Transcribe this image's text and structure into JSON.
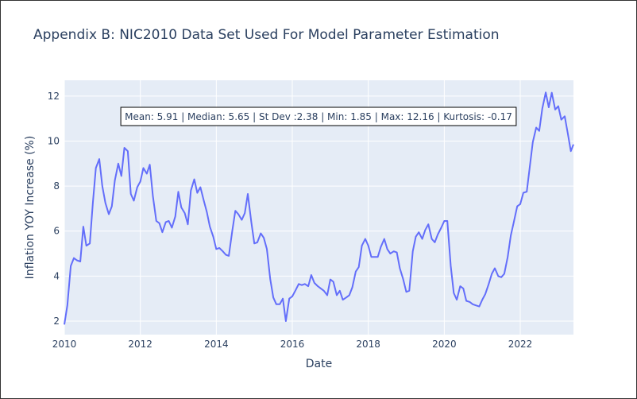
{
  "chart_data": {
    "type": "line",
    "title": "Appendix B: NIC2010 Data Set Used For Model Parameter Estimation",
    "xlabel": "Date",
    "ylabel": "Inflation YOY Increase (%)",
    "xlim": [
      2010.0,
      2023.4
    ],
    "ylim": [
      1.4,
      12.7
    ],
    "x_ticks": [
      2010,
      2012,
      2014,
      2016,
      2018,
      2020,
      2022
    ],
    "y_ticks": [
      2,
      4,
      6,
      8,
      10,
      12
    ],
    "grid": true,
    "legend": "none",
    "annotation": "Mean: 5.91 | Median: 5.65 | St Dev :2.38 | Min: 1.85 | Max: 12.16 | Kurtosis: -0.17",
    "colors": {
      "line": "#636efa",
      "plot_bg": "#e5ecf6",
      "grid": "#ffffff",
      "text": "#2a3f5f"
    },
    "series": [
      {
        "x": [
          2010.0,
          2010.08,
          2010.17,
          2010.25,
          2010.33,
          2010.42,
          2010.5,
          2010.58,
          2010.67,
          2010.75,
          2010.83,
          2010.92,
          2011.0,
          2011.08,
          2011.17,
          2011.25,
          2011.33,
          2011.42,
          2011.5,
          2011.58,
          2011.67,
          2011.75,
          2011.83,
          2011.92,
          2012.0,
          2012.08,
          2012.17,
          2012.25,
          2012.33,
          2012.42,
          2012.5,
          2012.58,
          2012.67,
          2012.75,
          2012.83,
          2012.92,
          2013.0,
          2013.08,
          2013.17,
          2013.25,
          2013.33,
          2013.42,
          2013.5,
          2013.58,
          2013.67,
          2013.75,
          2013.83,
          2013.92,
          2014.0,
          2014.08,
          2014.17,
          2014.25,
          2014.33,
          2014.42,
          2014.5,
          2014.58,
          2014.67,
          2014.75,
          2014.83,
          2014.92,
          2015.0,
          2015.08,
          2015.17,
          2015.25,
          2015.33,
          2015.42,
          2015.5,
          2015.58,
          2015.67,
          2015.75,
          2015.83,
          2015.92,
          2016.0,
          2016.08,
          2016.17,
          2016.25,
          2016.33,
          2016.42,
          2016.5,
          2016.58,
          2016.67,
          2016.75,
          2016.83,
          2016.92,
          2017.0,
          2017.08,
          2017.17,
          2017.25,
          2017.33,
          2017.42,
          2017.5,
          2017.58,
          2017.67,
          2017.75,
          2017.83,
          2017.92,
          2018.0,
          2018.08,
          2018.17,
          2018.25,
          2018.33,
          2018.42,
          2018.5,
          2018.58,
          2018.67,
          2018.75,
          2018.83,
          2018.92,
          2019.0,
          2019.08,
          2019.17,
          2019.25,
          2019.33,
          2019.42,
          2019.5,
          2019.58,
          2019.67,
          2019.75,
          2019.83,
          2019.92,
          2020.0,
          2020.08,
          2020.17,
          2020.25,
          2020.33,
          2020.42,
          2020.5,
          2020.58,
          2020.67,
          2020.75,
          2020.83,
          2020.92,
          2021.0,
          2021.08,
          2021.17,
          2021.25,
          2021.33,
          2021.42,
          2021.5,
          2021.58,
          2021.67,
          2021.75,
          2021.83,
          2021.92,
          2022.0,
          2022.08,
          2022.17,
          2022.25,
          2022.33,
          2022.42,
          2022.5,
          2022.58,
          2022.67,
          2022.75,
          2022.83,
          2022.92,
          2023.0,
          2023.08,
          2023.17,
          2023.25,
          2023.33,
          2023.4
        ],
        "y": [
          1.85,
          2.7,
          4.45,
          4.8,
          4.7,
          4.65,
          6.2,
          5.35,
          5.45,
          7.25,
          8.8,
          9.2,
          8.0,
          7.25,
          6.75,
          7.1,
          8.25,
          9.0,
          8.45,
          9.7,
          9.55,
          7.65,
          7.35,
          7.95,
          8.2,
          8.8,
          8.55,
          8.95,
          7.55,
          6.45,
          6.35,
          5.95,
          6.4,
          6.45,
          6.15,
          6.65,
          7.75,
          7.05,
          6.8,
          6.3,
          7.8,
          8.3,
          7.7,
          7.95,
          7.35,
          6.85,
          6.2,
          5.75,
          5.2,
          5.25,
          5.1,
          4.95,
          4.9,
          6.0,
          6.9,
          6.75,
          6.5,
          6.8,
          7.65,
          6.4,
          5.45,
          5.5,
          5.9,
          5.7,
          5.2,
          3.85,
          3.05,
          2.75,
          2.75,
          3.0,
          2.0,
          3.0,
          3.1,
          3.35,
          3.65,
          3.6,
          3.65,
          3.55,
          4.05,
          3.7,
          3.55,
          3.45,
          3.35,
          3.15,
          3.85,
          3.75,
          3.15,
          3.35,
          2.95,
          3.05,
          3.15,
          3.5,
          4.2,
          4.4,
          5.35,
          5.65,
          5.35,
          4.85,
          4.85,
          4.85,
          5.3,
          5.65,
          5.2,
          5.0,
          5.1,
          5.05,
          4.35,
          3.85,
          3.3,
          3.35,
          5.1,
          5.75,
          5.95,
          5.65,
          6.05,
          6.3,
          5.65,
          5.5,
          5.85,
          6.15,
          6.45,
          6.45,
          4.45,
          3.25,
          2.95,
          3.55,
          3.45,
          2.9,
          2.85,
          2.75,
          2.7,
          2.65,
          2.95,
          3.2,
          3.65,
          4.1,
          4.35,
          4.0,
          3.95,
          4.1,
          4.85,
          5.8,
          6.4,
          7.1,
          7.2,
          7.7,
          7.75,
          8.85,
          9.95,
          10.6,
          10.45,
          11.45,
          12.16,
          11.5,
          12.15,
          11.4,
          11.55,
          10.95,
          11.1,
          10.35,
          9.55,
          9.85
        ]
      }
    ]
  }
}
